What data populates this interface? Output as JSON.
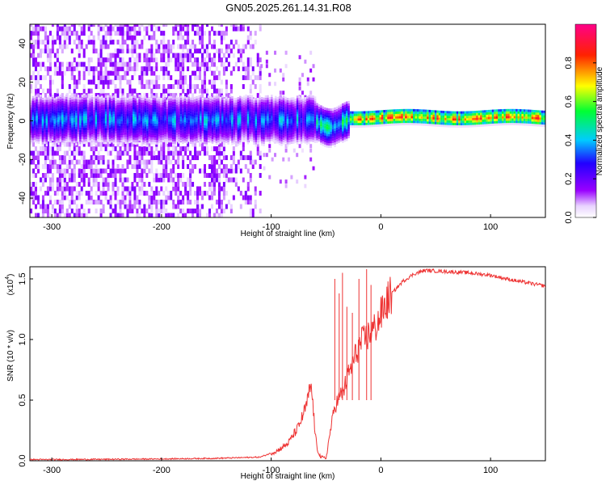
{
  "title": "GN05.2025.261.14.31.R08",
  "colors": {
    "snr_line": "#ee3333",
    "cmap": [
      "#ffffff",
      "#e8d2ff",
      "#9900ff",
      "#2200ff",
      "#00ccff",
      "#00ff33",
      "#ffff00",
      "#ff2200",
      "#ff0088"
    ]
  },
  "chart_data": [
    {
      "type": "heatmap",
      "title": "GN05.2025.261.14.31.R08",
      "xlabel": "Height of straight line (km)",
      "ylabel": "Frequency (Hz)",
      "xlim": [
        -320,
        150
      ],
      "ylim": [
        -50,
        50
      ],
      "x_ticks": [
        -300,
        -200,
        -100,
        0,
        100
      ],
      "y_ticks": [
        -40,
        -20,
        0,
        20,
        40
      ],
      "colorbar": {
        "label": "Normalized spectral amplitude",
        "range": [
          0,
          1
        ],
        "ticks": [
          0.0,
          0.2,
          0.4,
          0.6,
          0.8
        ]
      }
    },
    {
      "type": "line",
      "xlabel": "Height of straight line (km)",
      "ylabel": "SNR (10 * v/v)",
      "scale_label": "(x10",
      "scale_exponent": "4",
      "xlim": [
        -320,
        150
      ],
      "ylim": [
        0,
        1.6
      ],
      "x_ticks": [
        -300,
        -200,
        -100,
        0,
        100
      ],
      "y_ticks": [
        "0.0",
        "0.5",
        "1.0",
        "1.5"
      ],
      "series": [
        {
          "name": "SNR",
          "x": [
            -320,
            -300,
            -250,
            -200,
            -150,
            -110,
            -95,
            -85,
            -75,
            -68,
            -64,
            -62,
            -60,
            -58,
            -55,
            -50,
            -46,
            -42,
            -38,
            -34,
            -30,
            -25,
            -20,
            -15,
            -10,
            -5,
            0,
            5,
            10,
            20,
            30,
            40,
            60,
            80,
            100,
            120,
            150
          ],
          "values": [
            0.01,
            0.01,
            0.012,
            0.015,
            0.02,
            0.03,
            0.08,
            0.14,
            0.28,
            0.45,
            0.62,
            0.48,
            0.22,
            0.1,
            0.03,
            0.02,
            0.25,
            0.45,
            0.52,
            0.58,
            0.7,
            0.82,
            0.95,
            1.0,
            1.05,
            1.1,
            1.2,
            1.3,
            1.38,
            1.48,
            1.54,
            1.57,
            1.56,
            1.55,
            1.53,
            1.49,
            1.44
          ]
        }
      ],
      "spikes": [
        {
          "x": -42,
          "y": 1.5
        },
        {
          "x": -38,
          "y": 1.38
        },
        {
          "x": -35,
          "y": 1.55
        },
        {
          "x": -31,
          "y": 1.27
        },
        {
          "x": -26,
          "y": 1.22
        },
        {
          "x": -20,
          "y": 1.5
        },
        {
          "x": -13,
          "y": 1.58
        },
        {
          "x": -9,
          "y": 1.45
        }
      ]
    }
  ]
}
